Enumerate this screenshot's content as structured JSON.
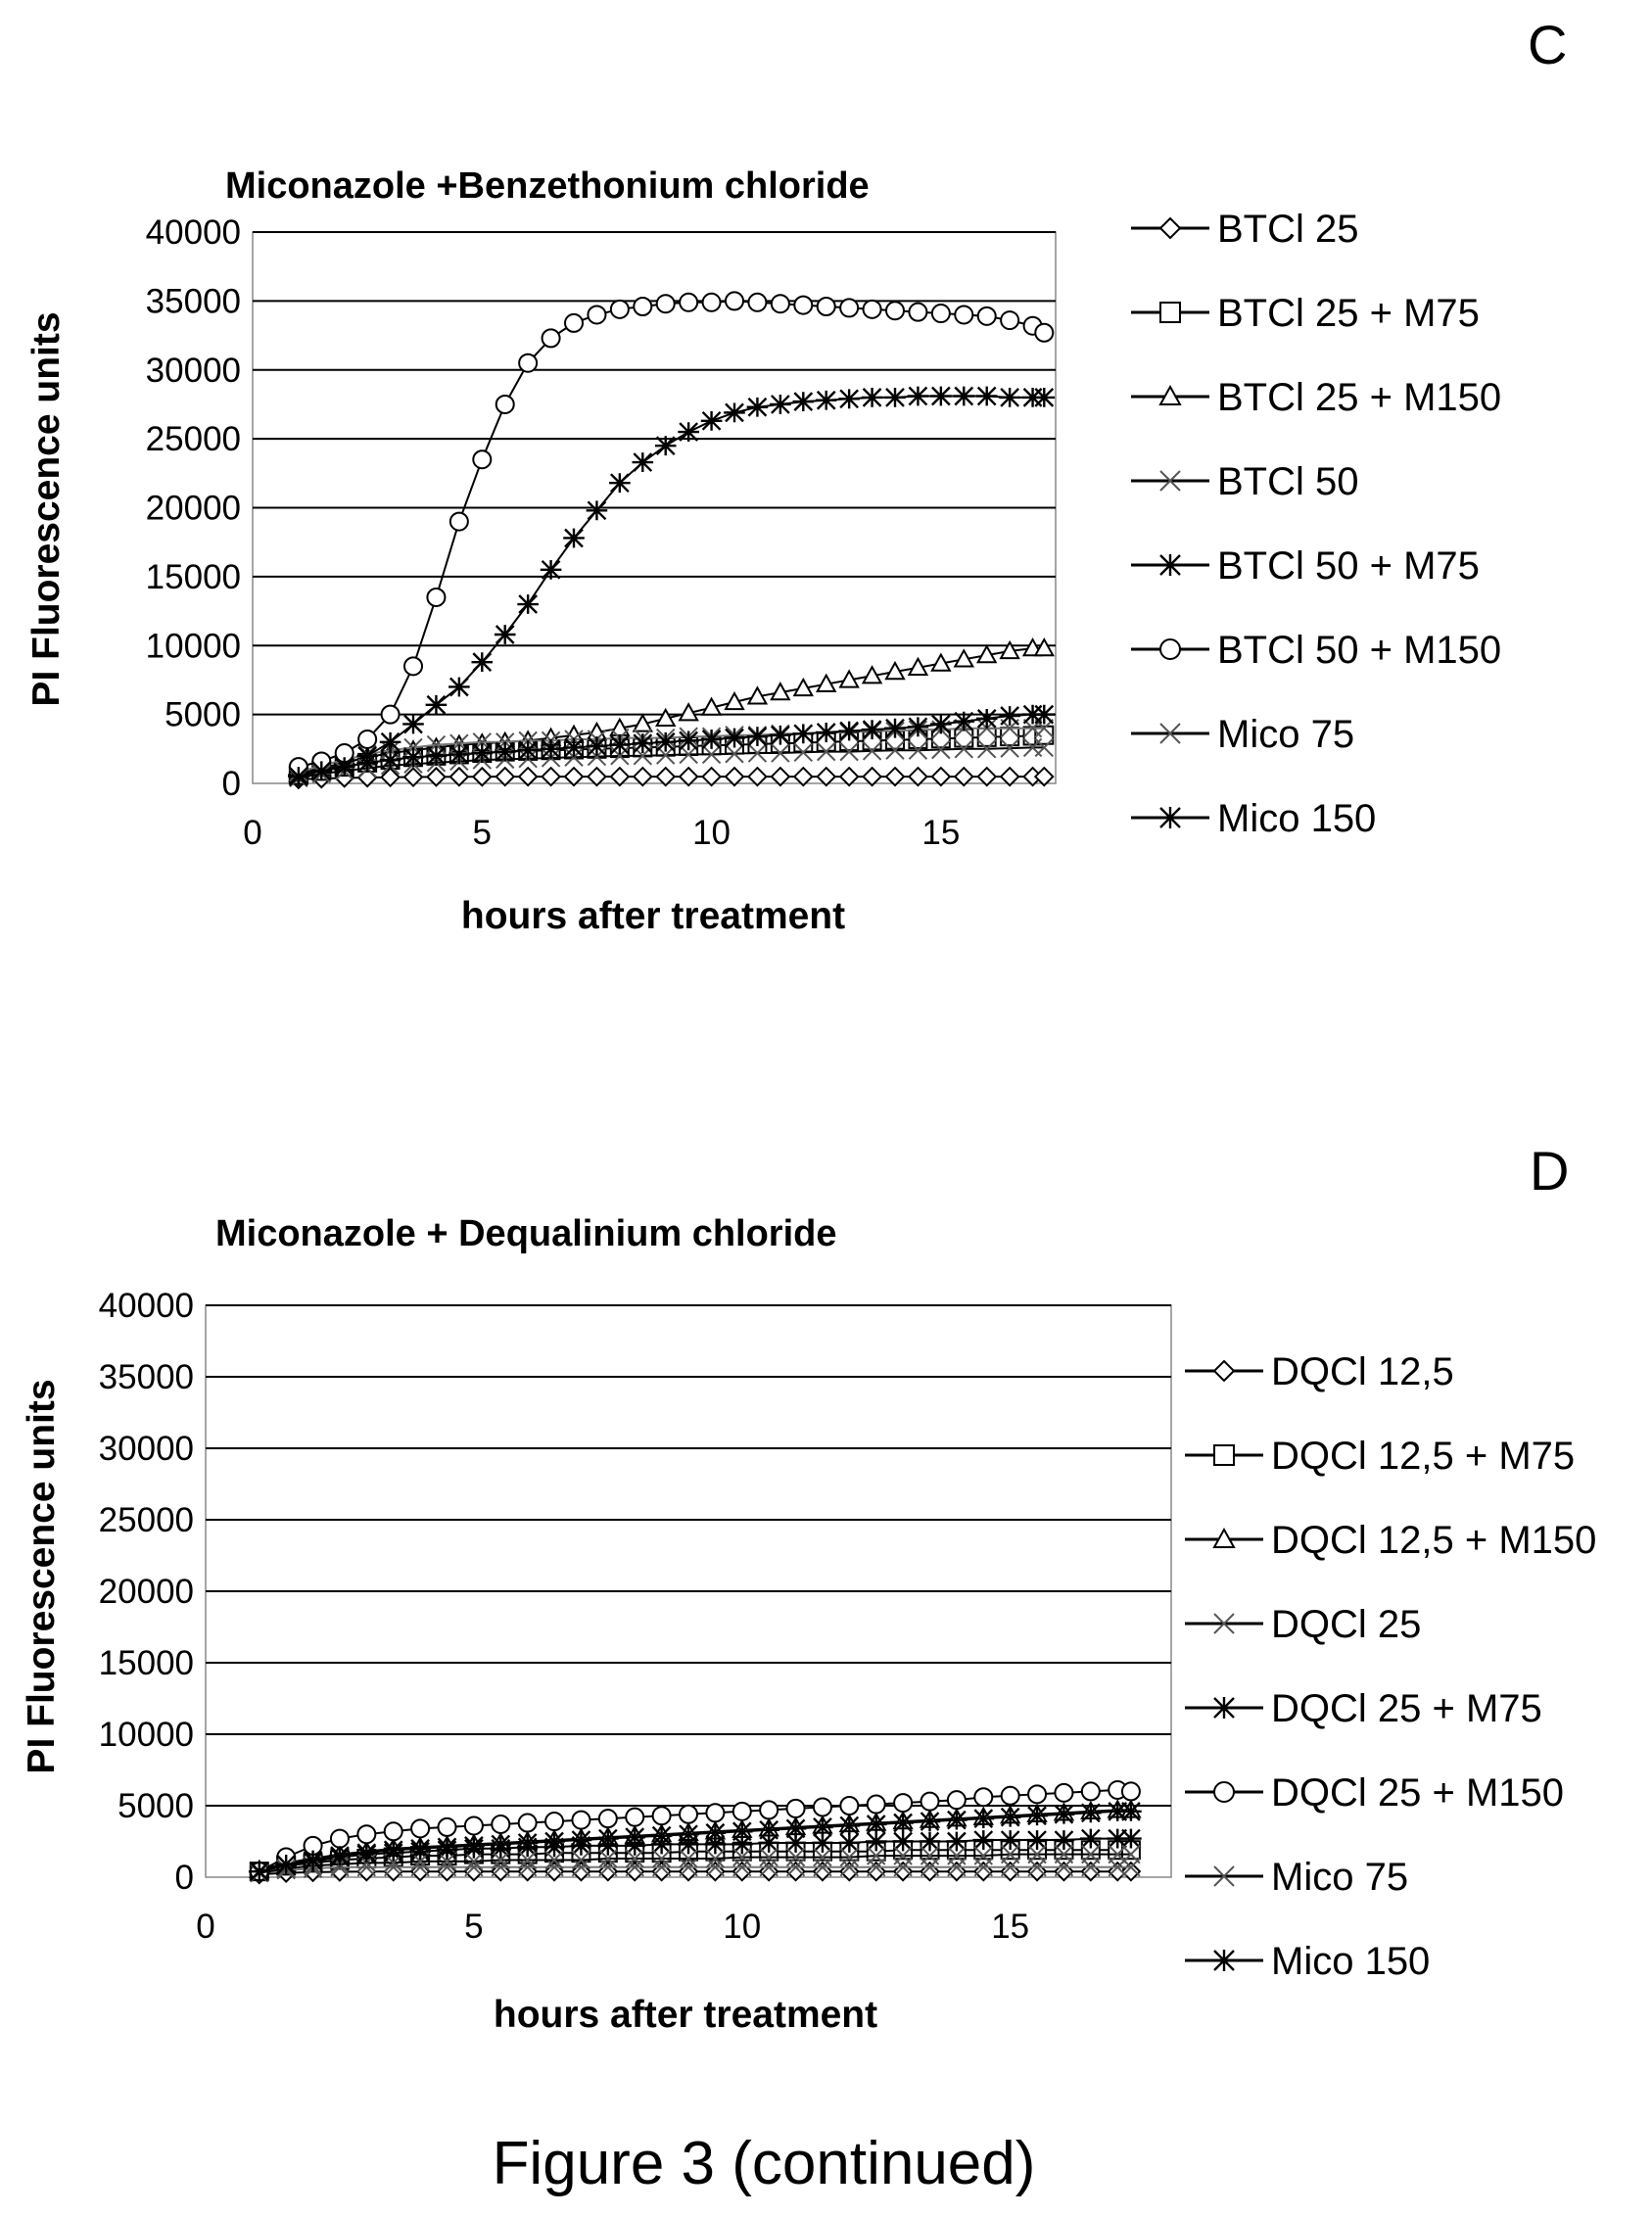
{
  "figure": {
    "caption": "Figure 3 (continued)"
  },
  "chart_data": [
    {
      "panel": "C",
      "type": "line",
      "title": "Miconazole +Benzethonium chloride",
      "xlabel": "hours after treatment",
      "ylabel": "PI Fluorescence units",
      "xlim": [
        0,
        17.5
      ],
      "ylim": [
        0,
        40000
      ],
      "xticks": [
        "0",
        "5",
        "10",
        "15"
      ],
      "yticks": [
        "0",
        "5000",
        "10000",
        "15000",
        "20000",
        "25000",
        "30000",
        "35000",
        "40000"
      ],
      "grid": "horizontal",
      "legend": "right",
      "x": [
        1,
        1.5,
        2,
        2.5,
        3,
        3.5,
        4,
        4.5,
        5,
        5.5,
        6,
        6.5,
        7,
        7.5,
        8,
        8.5,
        9,
        9.5,
        10,
        10.5,
        11,
        11.5,
        12,
        12.5,
        13,
        13.5,
        14,
        14.5,
        15,
        15.5,
        16,
        16.5,
        17,
        17.25
      ],
      "series": [
        {
          "name": "BTCl 25",
          "marker": "diamond",
          "values": [
            300,
            350,
            400,
            420,
            450,
            460,
            470,
            480,
            480,
            490,
            490,
            490,
            490,
            490,
            490,
            490,
            490,
            490,
            490,
            490,
            490,
            490,
            490,
            490,
            490,
            490,
            490,
            490,
            490,
            490,
            490,
            490,
            490,
            490
          ]
        },
        {
          "name": "BTCl 25 + M75",
          "marker": "square",
          "values": [
            600,
            900,
            1200,
            1500,
            1700,
            1900,
            2000,
            2100,
            2200,
            2300,
            2350,
            2400,
            2450,
            2500,
            2550,
            2600,
            2650,
            2700,
            2750,
            2800,
            2850,
            2900,
            2950,
            3000,
            3050,
            3100,
            3150,
            3200,
            3250,
            3300,
            3350,
            3400,
            3450,
            3500
          ]
        },
        {
          "name": "BTCl 25 + M150",
          "marker": "triangle",
          "values": [
            700,
            1100,
            1500,
            1900,
            2200,
            2400,
            2600,
            2800,
            2900,
            3000,
            3100,
            3300,
            3500,
            3700,
            4000,
            4300,
            4700,
            5100,
            5500,
            5900,
            6300,
            6600,
            6900,
            7200,
            7500,
            7800,
            8100,
            8400,
            8700,
            9000,
            9300,
            9600,
            9800,
            9800
          ]
        },
        {
          "name": "BTCl 50",
          "marker": "x",
          "values": [
            800,
            1300,
            1700,
            2100,
            2400,
            2600,
            2800,
            2900,
            3000,
            3000,
            3100,
            3100,
            3200,
            3200,
            3300,
            3300,
            3300,
            3400,
            3400,
            3500,
            3500,
            3600,
            3600,
            3700,
            3700,
            3800,
            3800,
            3900,
            3900,
            4000,
            4000,
            4000,
            4000,
            4000
          ]
        },
        {
          "name": "BTCl 50 + M75",
          "marker": "star",
          "values": [
            600,
            900,
            1400,
            2000,
            3000,
            4300,
            5700,
            7000,
            8800,
            10800,
            13000,
            15500,
            17800,
            19800,
            21800,
            23300,
            24500,
            25500,
            26300,
            26900,
            27300,
            27500,
            27700,
            27800,
            27900,
            28000,
            28000,
            28100,
            28100,
            28100,
            28100,
            28000,
            28000,
            28000
          ]
        },
        {
          "name": "BTCl 50 + M150",
          "marker": "circle",
          "values": [
            1200,
            1600,
            2200,
            3200,
            5000,
            8500,
            13500,
            19000,
            23500,
            27500,
            30500,
            32300,
            33400,
            34000,
            34400,
            34600,
            34800,
            34900,
            34900,
            35000,
            34900,
            34800,
            34700,
            34600,
            34500,
            34400,
            34300,
            34200,
            34100,
            34000,
            33900,
            33600,
            33200,
            32700
          ]
        },
        {
          "name": "Mico 75",
          "marker": "x",
          "values": [
            400,
            700,
            900,
            1100,
            1300,
            1400,
            1500,
            1600,
            1700,
            1750,
            1800,
            1850,
            1900,
            1950,
            2000,
            2000,
            2050,
            2100,
            2100,
            2150,
            2200,
            2200,
            2250,
            2300,
            2300,
            2350,
            2400,
            2400,
            2450,
            2500,
            2500,
            2550,
            2600,
            2600
          ]
        },
        {
          "name": "Mico 150",
          "marker": "star",
          "values": [
            500,
            900,
            1200,
            1500,
            1700,
            1900,
            2000,
            2100,
            2200,
            2300,
            2400,
            2500,
            2600,
            2700,
            2800,
            2900,
            3000,
            3100,
            3200,
            3300,
            3400,
            3500,
            3600,
            3700,
            3800,
            3900,
            4000,
            4100,
            4300,
            4500,
            4700,
            4900,
            5000,
            5000
          ]
        }
      ]
    },
    {
      "panel": "D",
      "type": "line",
      "title": "Miconazole + Dequalinium chloride",
      "xlabel": "hours after treatment",
      "ylabel": "PI Fluorescence units",
      "xlim": [
        0,
        18
      ],
      "ylim": [
        0,
        40000
      ],
      "xticks": [
        "0",
        "5",
        "10",
        "15"
      ],
      "yticks": [
        "0",
        "5000",
        "10000",
        "15000",
        "20000",
        "25000",
        "30000",
        "35000",
        "40000"
      ],
      "grid": "horizontal",
      "legend": "right",
      "x": [
        1,
        1.5,
        2,
        2.5,
        3,
        3.5,
        4,
        4.5,
        5,
        5.5,
        6,
        6.5,
        7,
        7.5,
        8,
        8.5,
        9,
        9.5,
        10,
        10.5,
        11,
        11.5,
        12,
        12.5,
        13,
        13.5,
        14,
        14.5,
        15,
        15.5,
        16,
        16.5,
        17,
        17.25
      ],
      "series": [
        {
          "name": "DQCl 12,5",
          "marker": "diamond",
          "values": [
            200,
            300,
            350,
            380,
            400,
            400,
            400,
            400,
            400,
            400,
            400,
            400,
            400,
            400,
            400,
            400,
            400,
            400,
            400,
            400,
            400,
            400,
            400,
            400,
            400,
            400,
            400,
            400,
            400,
            400,
            400,
            400,
            400,
            400
          ]
        },
        {
          "name": "DQCl 12,5 + M75",
          "marker": "square",
          "values": [
            400,
            800,
            1000,
            1200,
            1300,
            1400,
            1500,
            1500,
            1600,
            1600,
            1600,
            1700,
            1700,
            1700,
            1700,
            1700,
            1800,
            1800,
            1800,
            1800,
            1800,
            1800,
            1800,
            1800,
            1900,
            1900,
            1900,
            1900,
            1900,
            1900,
            1900,
            1900,
            1900,
            1900
          ]
        },
        {
          "name": "DQCl 12,5 + M150",
          "marker": "triangle",
          "values": [
            500,
            1000,
            1300,
            1600,
            1800,
            2000,
            2100,
            2200,
            2300,
            2400,
            2500,
            2600,
            2700,
            2800,
            2900,
            3000,
            3100,
            3200,
            3300,
            3400,
            3500,
            3600,
            3700,
            3800,
            3900,
            4000,
            4100,
            4200,
            4300,
            4400,
            4500,
            4600,
            4700,
            4700
          ]
        },
        {
          "name": "DQCl 25",
          "marker": "x",
          "values": [
            300,
            500,
            600,
            700,
            700,
            700,
            700,
            700,
            700,
            700,
            700,
            700,
            700,
            700,
            700,
            700,
            700,
            700,
            700,
            700,
            700,
            700,
            700,
            700,
            700,
            700,
            700,
            700,
            700,
            700,
            700,
            700,
            700,
            700
          ]
        },
        {
          "name": "DQCl 25 + M75",
          "marker": "star",
          "values": [
            400,
            800,
            1100,
            1400,
            1600,
            1700,
            1800,
            1900,
            2000,
            2000,
            2100,
            2100,
            2200,
            2200,
            2200,
            2300,
            2300,
            2300,
            2300,
            2400,
            2400,
            2400,
            2400,
            2500,
            2500,
            2500,
            2500,
            2600,
            2600,
            2600,
            2600,
            2700,
            2700,
            2700
          ]
        },
        {
          "name": "DQCl 25 + M150",
          "marker": "circle",
          "values": [
            400,
            1400,
            2200,
            2700,
            3000,
            3200,
            3400,
            3500,
            3600,
            3700,
            3800,
            3900,
            4000,
            4100,
            4200,
            4300,
            4400,
            4500,
            4600,
            4700,
            4800,
            4900,
            5000,
            5100,
            5200,
            5300,
            5400,
            5600,
            5700,
            5800,
            5900,
            6000,
            6100,
            6000
          ]
        },
        {
          "name": "Mico 75",
          "marker": "x",
          "values": [
            300,
            600,
            800,
            900,
            1000,
            1000,
            1100,
            1100,
            1100,
            1200,
            1200,
            1200,
            1200,
            1300,
            1300,
            1300,
            1300,
            1300,
            1400,
            1400,
            1400,
            1400,
            1400,
            1500,
            1500,
            1500,
            1500,
            1500,
            1600,
            1600,
            1600,
            1600,
            1600,
            1600
          ]
        },
        {
          "name": "Mico 150",
          "marker": "star",
          "values": [
            400,
            900,
            1200,
            1500,
            1700,
            1900,
            2000,
            2100,
            2200,
            2300,
            2400,
            2500,
            2600,
            2700,
            2800,
            2900,
            3000,
            3100,
            3200,
            3300,
            3400,
            3500,
            3600,
            3700,
            3800,
            3900,
            4000,
            4100,
            4200,
            4300,
            4400,
            4500,
            4600,
            4600
          ]
        }
      ]
    }
  ]
}
